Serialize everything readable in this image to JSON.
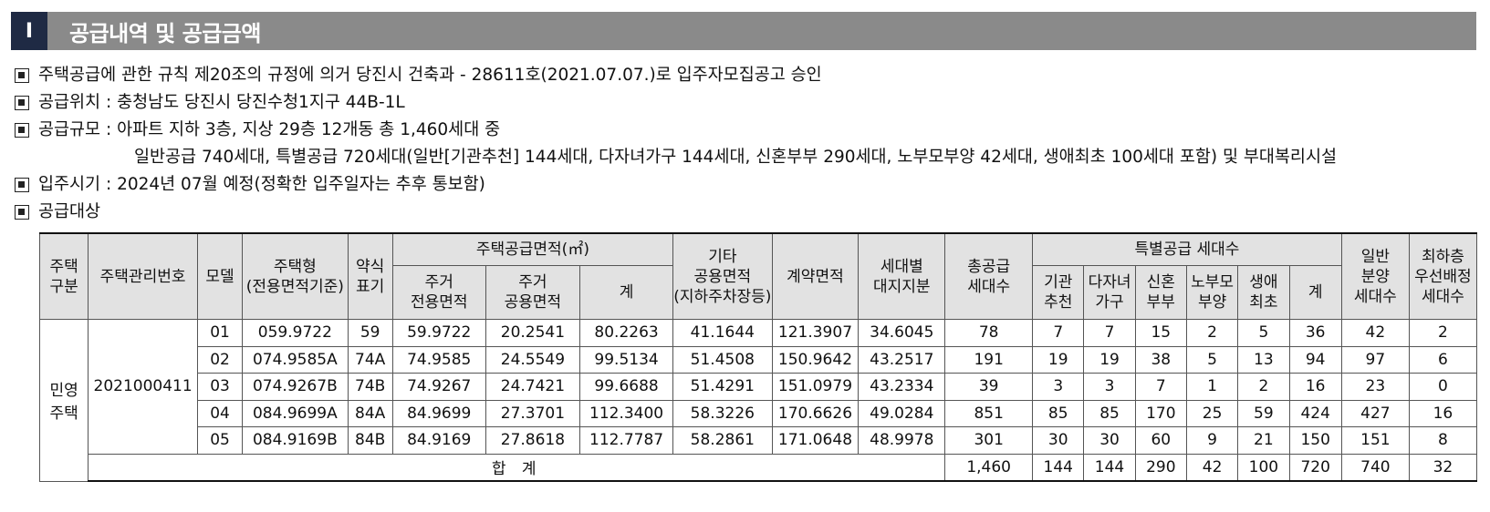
{
  "section": {
    "number": "I",
    "title": "공급내역 및 공급금액"
  },
  "lines": [
    "주택공급에 관한 규칙 제20조의 규정에 의거 당진시 건축과 - 28611호(2021.07.07.)로 입주자모집공고 승인",
    "공급위치 : 충청남도 당진시 당진수청1지구 44B-1L",
    "공급규모 : 아파트 지하 3층, 지상 29층 12개동 총 1,460세대 중",
    "입주시기 : 2024년 07월 예정(정확한 입주일자는 추후 통보함)",
    "공급대상"
  ],
  "line3_cont": "일반공급 740세대, 특별공급 720세대(일반[기관추천] 144세대, 다자녀가구 144세대, 신혼부부 290세대, 노부모부양 42세대, 생애최초 100세대 포함) 및 부대복리시설",
  "table": {
    "headers": {
      "type": "주택\n구분",
      "mgmt_no": "주택관리번호",
      "model": "모델",
      "housing_type": "주택형\n(전용면적기준)",
      "short": "약식\n표기",
      "area_group": "주택공급면적(㎡)",
      "area_exclusive": "주거\n전용면적",
      "area_common": "주거\n공용면적",
      "area_sum": "계",
      "other_common": "기타\n공용면적\n(지하주차장등)",
      "contract_area": "계약면적",
      "land_share": "세대별\n대지지분",
      "total_units": "총공급\n세대수",
      "special_group": "특별공급 세대수",
      "sp_inst": "기관\n추천",
      "sp_multi": "다자녀\n가구",
      "sp_newly": "신혼\n부부",
      "sp_elder": "노부모\n부양",
      "sp_first": "생애\n최초",
      "sp_sum": "계",
      "general": "일반\n분양\n세대수",
      "lowest": "최하층\n우선배정\n세대수"
    },
    "group_type": "민영\n주택",
    "group_mgmt_no": "2021000411",
    "rows": [
      [
        "01",
        "059.9722",
        "59",
        "59.9722",
        "20.2541",
        "80.2263",
        "41.1644",
        "121.3907",
        "34.6045",
        "78",
        "7",
        "7",
        "15",
        "2",
        "5",
        "36",
        "42",
        "2"
      ],
      [
        "02",
        "074.9585A",
        "74A",
        "74.9585",
        "24.5549",
        "99.5134",
        "51.4508",
        "150.9642",
        "43.2517",
        "191",
        "19",
        "19",
        "38",
        "5",
        "13",
        "94",
        "97",
        "6"
      ],
      [
        "03",
        "074.9267B",
        "74B",
        "74.9267",
        "24.7421",
        "99.6688",
        "51.4291",
        "151.0979",
        "43.2334",
        "39",
        "3",
        "3",
        "7",
        "1",
        "2",
        "16",
        "23",
        "0"
      ],
      [
        "04",
        "084.9699A",
        "84A",
        "84.9699",
        "27.3701",
        "112.3400",
        "58.3226",
        "170.6626",
        "49.0284",
        "851",
        "85",
        "85",
        "170",
        "25",
        "59",
        "424",
        "427",
        "16"
      ],
      [
        "05",
        "084.9169B",
        "84B",
        "84.9169",
        "27.8618",
        "112.7787",
        "58.2861",
        "171.0648",
        "48.9978",
        "301",
        "30",
        "30",
        "60",
        "9",
        "21",
        "150",
        "151",
        "8"
      ]
    ],
    "total_label": "합 계",
    "totals": [
      "1,460",
      "144",
      "144",
      "290",
      "42",
      "100",
      "720",
      "740",
      "32"
    ]
  }
}
